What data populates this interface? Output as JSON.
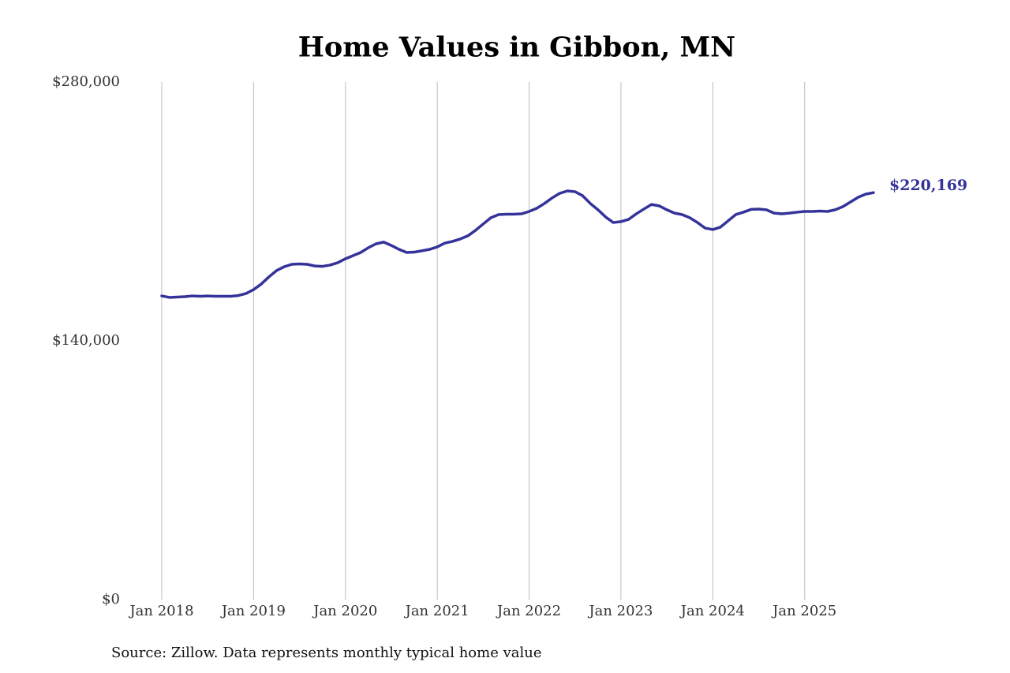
{
  "chart_data": {
    "type": "line",
    "title": "Home Values in Gibbon, MN",
    "source": "Source: Zillow. Data represents monthly typical home value",
    "x": [
      "2018-01",
      "2018-02",
      "2018-03",
      "2018-04",
      "2018-05",
      "2018-06",
      "2018-07",
      "2018-08",
      "2018-09",
      "2018-10",
      "2018-11",
      "2018-12",
      "2019-01",
      "2019-02",
      "2019-03",
      "2019-04",
      "2019-05",
      "2019-06",
      "2019-07",
      "2019-08",
      "2019-09",
      "2019-10",
      "2019-11",
      "2019-12",
      "2020-01",
      "2020-02",
      "2020-03",
      "2020-04",
      "2020-05",
      "2020-06",
      "2020-07",
      "2020-08",
      "2020-09",
      "2020-10",
      "2020-11",
      "2020-12",
      "2021-01",
      "2021-02",
      "2021-03",
      "2021-04",
      "2021-05",
      "2021-06",
      "2021-07",
      "2021-08",
      "2021-09",
      "2021-10",
      "2021-11",
      "2021-12",
      "2022-01",
      "2022-02",
      "2022-03",
      "2022-04",
      "2022-05",
      "2022-06",
      "2022-07",
      "2022-08",
      "2022-09",
      "2022-10",
      "2022-11",
      "2022-12",
      "2023-01",
      "2023-02",
      "2023-03",
      "2023-04",
      "2023-05",
      "2023-06",
      "2023-07",
      "2023-08",
      "2023-09",
      "2023-10",
      "2023-11",
      "2023-12",
      "2024-01",
      "2024-02",
      "2024-03",
      "2024-04",
      "2024-05",
      "2024-06",
      "2024-07",
      "2024-08",
      "2024-09",
      "2024-10",
      "2024-11",
      "2024-12",
      "2025-01",
      "2025-02",
      "2025-03",
      "2025-04",
      "2025-05",
      "2025-06",
      "2025-07",
      "2025-08",
      "2025-09",
      "2025-10"
    ],
    "series": [
      {
        "name": "Home value",
        "color": "#35339a",
        "values": [
          164300,
          163500,
          163700,
          163900,
          164300,
          164100,
          164300,
          164100,
          164100,
          164100,
          164500,
          165600,
          167700,
          170700,
          174600,
          178000,
          180100,
          181400,
          181600,
          181400,
          180500,
          180300,
          181000,
          182300,
          184400,
          186100,
          187800,
          190400,
          192500,
          193400,
          191600,
          189500,
          187800,
          188000,
          188700,
          189500,
          190800,
          192900,
          193800,
          195100,
          196800,
          199800,
          203200,
          206600,
          208300,
          208500,
          208500,
          208700,
          210000,
          211700,
          214300,
          217300,
          219800,
          221100,
          220700,
          218500,
          214300,
          210900,
          207000,
          204000,
          204500,
          205700,
          208700,
          211300,
          213800,
          213000,
          210900,
          209100,
          208300,
          206600,
          204000,
          201000,
          200200,
          201500,
          204900,
          208300,
          209600,
          211100,
          211300,
          210900,
          209100,
          208700,
          209100,
          209600,
          210000,
          210000,
          210200,
          210000,
          210900,
          212600,
          215100,
          217700,
          219400,
          220169
        ],
        "value_labels": [
          null,
          null,
          null,
          null,
          null,
          null,
          null,
          null,
          null,
          null,
          null,
          null,
          null,
          null,
          null,
          null,
          null,
          null,
          null,
          null,
          null,
          null,
          null,
          null,
          null,
          null,
          null,
          null,
          null,
          null,
          null,
          null,
          null,
          null,
          null,
          null,
          null,
          null,
          null,
          null,
          null,
          null,
          null,
          null,
          null,
          null,
          null,
          null,
          null,
          null,
          null,
          null,
          null,
          null,
          null,
          null,
          null,
          null,
          null,
          null,
          null,
          null,
          null,
          null,
          null,
          null,
          null,
          null,
          null,
          null,
          null,
          null,
          null,
          null,
          null,
          null,
          null,
          null,
          null,
          null,
          null,
          null,
          null,
          null,
          null,
          null,
          null,
          null,
          null,
          null,
          null,
          null,
          null,
          "$220,169"
        ]
      }
    ],
    "xticks": [
      {
        "value": "2018-01",
        "label": "Jan 2018"
      },
      {
        "value": "2019-01",
        "label": "Jan 2019"
      },
      {
        "value": "2020-01",
        "label": "Jan 2020"
      },
      {
        "value": "2021-01",
        "label": "Jan 2021"
      },
      {
        "value": "2022-01",
        "label": "Jan 2022"
      },
      {
        "value": "2023-01",
        "label": "Jan 2023"
      },
      {
        "value": "2024-01",
        "label": "Jan 2024"
      },
      {
        "value": "2025-01",
        "label": "Jan 2025"
      }
    ],
    "ylim": [
      0,
      280000
    ],
    "yticks": [
      {
        "value": 0,
        "label": "$0"
      },
      {
        "value": 140000,
        "label": "$140,000"
      },
      {
        "value": 280000,
        "label": "$280,000"
      }
    ],
    "grid": "x"
  }
}
